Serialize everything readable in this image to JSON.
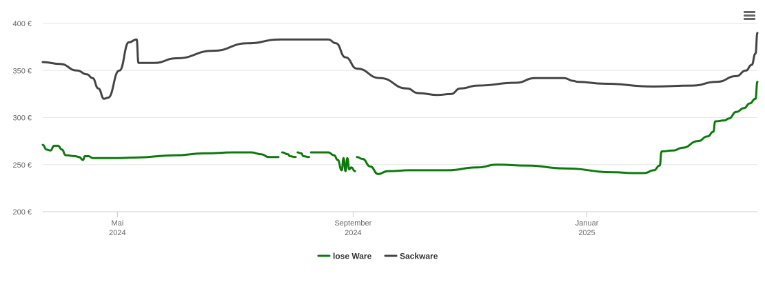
{
  "chart_data": {
    "type": "line",
    "title": "",
    "xlabel": "",
    "ylabel": "",
    "ylim": [
      200,
      400
    ],
    "y_ticks": [
      {
        "value": 200,
        "label": "200 €"
      },
      {
        "value": 250,
        "label": "250 €"
      },
      {
        "value": 300,
        "label": "300 €"
      },
      {
        "value": 350,
        "label": "350 €"
      },
      {
        "value": 400,
        "label": "400 €"
      }
    ],
    "xlim": [
      "2024-03-23",
      "2025-03-31"
    ],
    "x_ticks": [
      {
        "date": "2024-05-01",
        "line1": "Mai",
        "line2": "2024"
      },
      {
        "date": "2024-09-01",
        "line1": "September",
        "line2": "2024"
      },
      {
        "date": "2025-01-01",
        "line1": "Januar",
        "line2": "2025"
      }
    ],
    "grid": true,
    "legend_position": "bottom-center",
    "series": [
      {
        "name": "lose Ware",
        "color": "#0b7a0b",
        "segments": [
          [
            [
              "2024-03-23",
              271
            ],
            [
              "2024-03-25",
              266
            ],
            [
              "2024-03-27",
              265
            ],
            [
              "2024-03-29",
              270
            ],
            [
              "2024-03-31",
              270
            ],
            [
              "2024-04-02",
              266
            ],
            [
              "2024-04-04",
              260
            ],
            [
              "2024-04-09",
              259
            ],
            [
              "2024-04-11",
              258
            ],
            [
              "2024-04-13",
              255
            ],
            [
              "2024-04-14",
              259
            ],
            [
              "2024-04-16",
              259
            ],
            [
              "2024-04-18",
              257
            ],
            [
              "2024-04-25",
              257
            ],
            [
              "2024-05-01",
              257
            ],
            [
              "2024-05-10",
              257.5
            ],
            [
              "2024-06-01",
              260
            ],
            [
              "2024-06-15",
              262
            ],
            [
              "2024-07-01",
              263
            ],
            [
              "2024-07-10",
              263
            ],
            [
              "2024-07-15",
              261
            ],
            [
              "2024-07-19",
              258
            ],
            [
              "2024-07-24",
              258
            ]
          ],
          [
            [
              "2024-07-26",
              263
            ],
            [
              "2024-07-29",
              261
            ],
            [
              "2024-07-30",
              259
            ],
            [
              "2024-08-02",
              258
            ]
          ],
          [
            [
              "2024-08-03",
              263
            ],
            [
              "2024-08-05",
              262
            ],
            [
              "2024-08-06",
              259
            ],
            [
              "2024-08-09",
              258
            ]
          ],
          [
            [
              "2024-08-10",
              263
            ],
            [
              "2024-08-19",
              263
            ],
            [
              "2024-08-22",
              260
            ],
            [
              "2024-08-24",
              255
            ],
            [
              "2024-08-26",
              244
            ],
            [
              "2024-08-27",
              257
            ],
            [
              "2024-08-28",
              243
            ],
            [
              "2024-08-29",
              257
            ],
            [
              "2024-08-30",
              245
            ],
            [
              "2024-08-31",
              247
            ],
            [
              "2024-09-02",
              243
            ]
          ],
          [
            [
              "2024-09-03",
              258
            ],
            [
              "2024-09-06",
              256
            ],
            [
              "2024-09-10",
              248
            ],
            [
              "2024-09-14",
              240
            ],
            [
              "2024-09-19",
              243
            ],
            [
              "2024-10-01",
              244
            ],
            [
              "2024-10-20",
              244
            ],
            [
              "2024-11-05",
              247
            ],
            [
              "2024-11-15",
              250
            ],
            [
              "2024-12-01",
              249
            ],
            [
              "2024-12-20",
              246
            ],
            [
              "2025-01-15",
              242
            ],
            [
              "2025-01-25",
              241
            ],
            [
              "2025-01-31",
              241
            ],
            [
              "2025-02-05",
              244
            ],
            [
              "2025-02-08",
              249
            ],
            [
              "2025-02-09",
              264
            ],
            [
              "2025-02-15",
              265
            ],
            [
              "2025-02-20",
              268
            ],
            [
              "2025-02-28",
              275
            ],
            [
              "2025-03-05",
              280
            ],
            [
              "2025-03-08",
              285
            ],
            [
              "2025-03-09",
              296
            ],
            [
              "2025-03-14",
              297
            ],
            [
              "2025-03-16",
              299
            ],
            [
              "2025-03-20",
              306
            ],
            [
              "2025-03-24",
              310
            ],
            [
              "2025-03-27",
              315
            ],
            [
              "2025-03-30",
              320
            ],
            [
              "2025-03-31",
              338
            ]
          ]
        ]
      },
      {
        "name": "Sackware",
        "color": "#444444",
        "segments": [
          [
            [
              "2024-03-23",
              359
            ],
            [
              "2024-04-01",
              357
            ],
            [
              "2024-04-10",
              350
            ],
            [
              "2024-04-15",
              346
            ],
            [
              "2024-04-18",
              342
            ],
            [
              "2024-04-21",
              331
            ],
            [
              "2024-04-24",
              320
            ],
            [
              "2024-04-26",
              321
            ],
            [
              "2024-05-02",
              350
            ],
            [
              "2024-05-07",
              380
            ],
            [
              "2024-05-11",
              383
            ],
            [
              "2024-05-12",
              358
            ],
            [
              "2024-05-20",
              358
            ],
            [
              "2024-06-01",
              363
            ],
            [
              "2024-06-20",
              371
            ],
            [
              "2024-07-08",
              379
            ],
            [
              "2024-07-25",
              383
            ],
            [
              "2024-08-10",
              383
            ],
            [
              "2024-08-19",
              383
            ],
            [
              "2024-08-23",
              379
            ],
            [
              "2024-08-28",
              364
            ],
            [
              "2024-09-03",
              352
            ],
            [
              "2024-09-15",
              342
            ],
            [
              "2024-09-29",
              331
            ],
            [
              "2024-10-05",
              326
            ],
            [
              "2024-10-15",
              324
            ],
            [
              "2024-10-22",
              325
            ],
            [
              "2024-10-27",
              331
            ],
            [
              "2024-11-05",
              334
            ],
            [
              "2024-11-25",
              337
            ],
            [
              "2024-12-05",
              342
            ],
            [
              "2024-12-20",
              342
            ],
            [
              "2024-12-25",
              339
            ],
            [
              "2024-12-27",
              338
            ],
            [
              "2025-01-10",
              336
            ],
            [
              "2025-02-05",
              333
            ],
            [
              "2025-02-25",
              334
            ],
            [
              "2025-03-10",
              338
            ],
            [
              "2025-03-20",
              344
            ],
            [
              "2025-03-25",
              350
            ],
            [
              "2025-03-28",
              356
            ],
            [
              "2025-03-30",
              368
            ],
            [
              "2025-03-31",
              390
            ]
          ]
        ]
      }
    ]
  },
  "toolbar": {
    "menu_icon": "hamburger-menu-icon"
  }
}
